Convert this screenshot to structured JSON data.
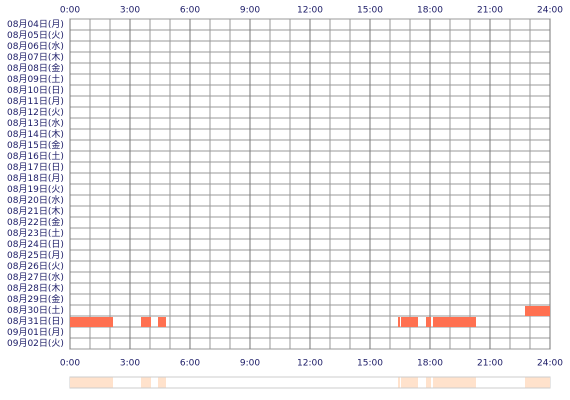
{
  "chart_data": {
    "type": "timeline",
    "categories": [
      "08月04日(月)",
      "08月05日(火)",
      "08月06日(水)",
      "08月07日(木)",
      "08月08日(金)",
      "08月09日(土)",
      "08月10日(日)",
      "08月11日(月)",
      "08月12日(火)",
      "08月13日(水)",
      "08月14日(木)",
      "08月15日(金)",
      "08月16日(土)",
      "08月17日(日)",
      "08月18日(月)",
      "08月19日(火)",
      "08月20日(水)",
      "08月21日(木)",
      "08月22日(金)",
      "08月23日(土)",
      "08月24日(日)",
      "08月25日(月)",
      "08月26日(火)",
      "08月27日(水)",
      "08月28日(木)",
      "08月29日(金)",
      "08月30日(土)",
      "08月31日(日)",
      "09月01日(月)",
      "09月02日(火)"
    ],
    "values": [
      [],
      [],
      [],
      [],
      [],
      [],
      [],
      [],
      [],
      [],
      [],
      [],
      [],
      [],
      [],
      [],
      [],
      [],
      [],
      [],
      [],
      [],
      [],
      [],
      [],
      [],
      [
        [
          22.75,
          24
        ]
      ],
      [
        [
          0,
          2.15
        ],
        [
          3.55,
          4.05
        ],
        [
          4.4,
          4.8
        ],
        [
          16.4,
          16.5
        ],
        [
          16.55,
          17.4
        ],
        [
          17.8,
          18.05
        ],
        [
          18.15,
          20.3
        ]
      ],
      [],
      []
    ],
    "color": "#ff7050",
    "summary_color": "#ffe2cc",
    "xlim": [
      0,
      24
    ],
    "xticks": [
      {
        "value": 0,
        "label": "0:00"
      },
      {
        "value": 3,
        "label": "3:00"
      },
      {
        "value": 6,
        "label": "6:00"
      },
      {
        "value": 9,
        "label": "9:00"
      },
      {
        "value": 12,
        "label": "12:00"
      },
      {
        "value": 15,
        "label": "15:00"
      },
      {
        "value": 18,
        "label": "18:00"
      },
      {
        "value": 21,
        "label": "21:00"
      },
      {
        "value": 24,
        "label": "24:00"
      }
    ],
    "grid": true
  }
}
